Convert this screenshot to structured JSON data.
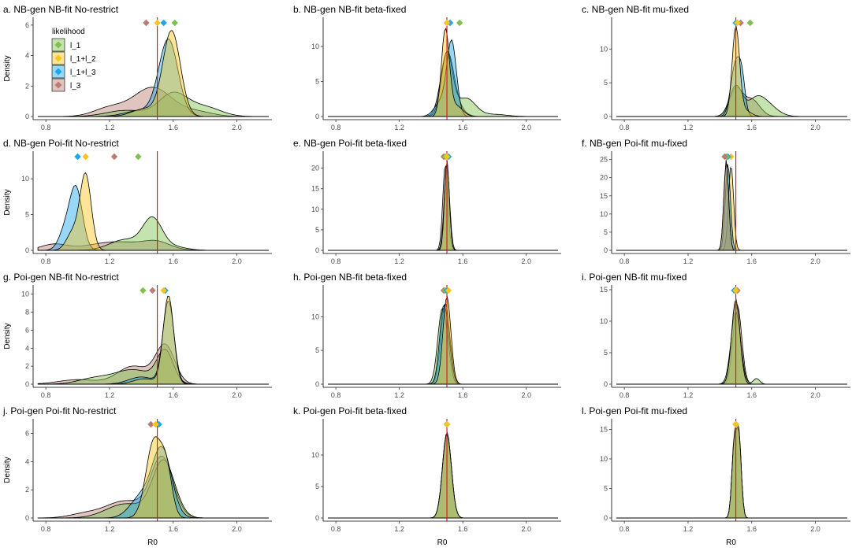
{
  "chart_data": {
    "type": "area",
    "layout": "4x3 grid of density panels",
    "x_label": "R0",
    "y_label": "Density",
    "xlim": [
      0.72,
      2.22
    ],
    "x_ticks": [
      0.8,
      1.2,
      1.6,
      2.0
    ],
    "x_tick_labels": [
      "0.8",
      "1.2",
      "1.6",
      "2.0"
    ],
    "true_value": 1.5,
    "legend": {
      "title": "likelihood",
      "position": "inside top-left of panel a",
      "entries": [
        {
          "key": "l1",
          "label": "l_1",
          "color": "#7cc24b"
        },
        {
          "key": "l12",
          "label": "l_1+l_2",
          "color": "#f8c51c"
        },
        {
          "key": "l13",
          "label": "l_1+l_3",
          "color": "#1aa7ec"
        },
        {
          "key": "l3",
          "label": "l_3",
          "color": "#b97d74"
        }
      ]
    },
    "colors": {
      "reference_line": "#e31a1c",
      "outline": "#000000"
    },
    "panels": [
      {
        "title": "a. NB-gen NB-fit No-restrict",
        "ylim": [
          0,
          6.2
        ],
        "y_ticks": [
          0,
          2,
          4,
          6
        ],
        "series": [
          {
            "key": "l3",
            "comps": [
              [
                1.47,
                0.12,
                1.9
              ],
              [
                1.2,
                0.1,
                0.55
              ],
              [
                1.75,
                0.1,
                0.3
              ]
            ],
            "diamond": 1.43
          },
          {
            "key": "l1",
            "comps": [
              [
                1.6,
                0.09,
                1.5
              ],
              [
                1.8,
                0.1,
                0.6
              ],
              [
                1.3,
                0.12,
                0.4
              ]
            ],
            "diamond": 1.61
          },
          {
            "key": "l13",
            "comps": [
              [
                1.57,
                0.06,
                5.0
              ],
              [
                1.4,
                0.1,
                0.4
              ]
            ],
            "diamond": 1.54
          },
          {
            "key": "l12",
            "comps": [
              [
                1.59,
                0.055,
                5.6
              ],
              [
                1.42,
                0.08,
                0.5
              ]
            ],
            "diamond": 1.5
          }
        ]
      },
      {
        "title": "b. NB-gen NB-fit beta-fixed",
        "ylim": [
          0,
          13.5
        ],
        "y_ticks": [
          0,
          5,
          10
        ],
        "series": [
          {
            "key": "l3",
            "comps": [
              [
                1.5,
                0.04,
                8.4
              ],
              [
                1.55,
                0.05,
                1.5
              ]
            ],
            "diamond": 1.5
          },
          {
            "key": "l1",
            "comps": [
              [
                1.5,
                0.035,
                9.0
              ],
              [
                1.62,
                0.06,
                2.6
              ],
              [
                1.8,
                0.08,
                0.3
              ]
            ],
            "diamond": 1.58
          },
          {
            "key": "l13",
            "comps": [
              [
                1.53,
                0.03,
                10.5
              ],
              [
                1.46,
                0.04,
                2.0
              ]
            ],
            "diamond": 1.52
          },
          {
            "key": "l12",
            "comps": [
              [
                1.49,
                0.025,
                12.3
              ],
              [
                1.56,
                0.04,
                1.5
              ]
            ],
            "diamond": 1.5
          }
        ]
      },
      {
        "title": "c. NB-gen NB-fit mu-fixed",
        "ylim": [
          0,
          14
        ],
        "y_ticks": [
          0,
          5,
          10
        ],
        "series": [
          {
            "key": "l3",
            "comps": [
              [
                1.5,
                0.04,
                4.0
              ],
              [
                1.6,
                0.05,
                2.5
              ]
            ],
            "diamond": 1.53
          },
          {
            "key": "l1",
            "comps": [
              [
                1.5,
                0.04,
                4.5
              ],
              [
                1.68,
                0.07,
                2.0
              ],
              [
                1.62,
                0.05,
                1.5
              ]
            ],
            "diamond": 1.59
          },
          {
            "key": "l13",
            "comps": [
              [
                1.5,
                0.03,
                8.0
              ],
              [
                1.54,
                0.02,
                4.0
              ]
            ],
            "diamond": 1.5
          },
          {
            "key": "l12",
            "comps": [
              [
                1.5,
                0.023,
                13.0
              ],
              [
                1.55,
                0.04,
                1.0
              ]
            ],
            "diamond": 1.51
          }
        ]
      },
      {
        "title": "d. NB-gen Poi-fit No-restrict",
        "ylim": [
          0,
          13.2
        ],
        "y_ticks": [
          0,
          5,
          10
        ],
        "series": [
          {
            "key": "l3",
            "comps": [
              [
                1.25,
                0.18,
                1.2
              ],
              [
                0.85,
                0.08,
                0.8
              ],
              [
                1.5,
                0.08,
                0.9
              ]
            ],
            "diamond": 1.23
          },
          {
            "key": "l1",
            "comps": [
              [
                1.47,
                0.06,
                4.2
              ],
              [
                1.3,
                0.1,
                1.5
              ],
              [
                1.6,
                0.08,
                0.5
              ]
            ],
            "diamond": 1.38
          },
          {
            "key": "l13",
            "comps": [
              [
                0.99,
                0.04,
                8.5
              ],
              [
                0.92,
                0.04,
                2.5
              ]
            ],
            "diamond": 1.0
          },
          {
            "key": "l12",
            "comps": [
              [
                1.05,
                0.035,
                10.5
              ],
              [
                0.97,
                0.04,
                2.5
              ]
            ],
            "diamond": 1.05
          }
        ]
      },
      {
        "title": "e. NB-gen Poi-fit beta-fixed",
        "ylim": [
          0,
          23
        ],
        "y_ticks": [
          0,
          5,
          10,
          15,
          20
        ],
        "series": [
          {
            "key": "l3",
            "comps": [
              [
                1.49,
                0.016,
                21.0
              ]
            ],
            "diamond": 1.48
          },
          {
            "key": "l1",
            "comps": [
              [
                1.5,
                0.017,
                20.5
              ]
            ],
            "diamond": 1.49
          },
          {
            "key": "l13",
            "comps": [
              [
                1.5,
                0.015,
                21.5
              ]
            ],
            "diamond": 1.51
          },
          {
            "key": "l12",
            "comps": [
              [
                1.5,
                0.015,
                22.0
              ]
            ],
            "diamond": 1.5
          }
        ]
      },
      {
        "title": "f. NB-gen Poi-fit mu-fixed",
        "ylim": [
          0,
          26
        ],
        "y_ticks": [
          0,
          5,
          10,
          15,
          20,
          25
        ],
        "series": [
          {
            "key": "l12",
            "comps": [
              [
                1.47,
                0.016,
                23.5
              ]
            ],
            "diamond": 1.47
          },
          {
            "key": "l13",
            "comps": [
              [
                1.45,
                0.016,
                24.0
              ]
            ],
            "diamond": 1.45
          },
          {
            "key": "l1",
            "comps": [
              [
                1.44,
                0.015,
                24.5
              ]
            ],
            "diamond": 1.44
          },
          {
            "key": "l3",
            "comps": [
              [
                1.44,
                0.015,
                25.0
              ]
            ],
            "diamond": 1.43
          }
        ]
      },
      {
        "title": "g. Poi-gen NB-fit No-restrict",
        "ylim": [
          0,
          10.5
        ],
        "y_ticks": [
          0,
          2,
          4,
          6,
          8,
          10
        ],
        "series": [
          {
            "key": "l3",
            "comps": [
              [
                1.55,
                0.06,
                4.2
              ],
              [
                1.35,
                0.1,
                2.0
              ],
              [
                1.0,
                0.12,
                0.5
              ]
            ],
            "diamond": 1.47
          },
          {
            "key": "l1",
            "comps": [
              [
                1.55,
                0.05,
                3.5
              ],
              [
                1.35,
                0.12,
                1.6
              ],
              [
                1.1,
                0.1,
                0.6
              ]
            ],
            "diamond": 1.41
          },
          {
            "key": "l13",
            "comps": [
              [
                1.57,
                0.035,
                9.2
              ],
              [
                1.4,
                0.08,
                0.8
              ]
            ],
            "diamond": 1.55
          },
          {
            "key": "l12",
            "comps": [
              [
                1.57,
                0.033,
                9.8
              ],
              [
                1.42,
                0.07,
                0.6
              ]
            ],
            "diamond": 1.54
          }
        ]
      },
      {
        "title": "h. Poi-gen NB-fit beta-fixed",
        "ylim": [
          0,
          14
        ],
        "y_ticks": [
          0,
          5,
          10
        ],
        "series": [
          {
            "key": "l3",
            "comps": [
              [
                1.49,
                0.028,
                12.0
              ]
            ],
            "diamond": 1.48
          },
          {
            "key": "l1",
            "comps": [
              [
                1.47,
                0.028,
                11.0
              ],
              [
                1.51,
                0.02,
                2.0
              ]
            ],
            "diamond": 1.49
          },
          {
            "key": "l13",
            "comps": [
              [
                1.48,
                0.026,
                11.5
              ],
              [
                1.52,
                0.02,
                2.0
              ]
            ],
            "diamond": 1.5
          },
          {
            "key": "l12",
            "comps": [
              [
                1.5,
                0.025,
                13.0
              ]
            ],
            "diamond": 1.51
          }
        ]
      },
      {
        "title": "i. Poi-gen NB-fit mu-fixed",
        "ylim": [
          0,
          15
        ],
        "y_ticks": [
          0,
          5,
          10,
          15
        ],
        "series": [
          {
            "key": "l3",
            "comps": [
              [
                1.51,
                0.027,
                12.5
              ]
            ],
            "diamond": 1.51
          },
          {
            "key": "l1",
            "comps": [
              [
                1.5,
                0.03,
                11.5
              ],
              [
                1.63,
                0.02,
                0.9
              ]
            ],
            "diamond": 1.5
          },
          {
            "key": "l13",
            "comps": [
              [
                1.5,
                0.026,
                13.0
              ]
            ],
            "diamond": 1.49
          },
          {
            "key": "l12",
            "comps": [
              [
                1.5,
                0.026,
                13.5
              ]
            ],
            "diamond": 1.5
          }
        ]
      },
      {
        "title": "j. Poi-gen Poi-fit No-restrict",
        "ylim": [
          0,
          6.7
        ],
        "y_ticks": [
          0,
          2,
          4,
          6
        ],
        "series": [
          {
            "key": "l3",
            "comps": [
              [
                1.53,
                0.07,
                4.2
              ],
              [
                1.3,
                0.12,
                1.2
              ],
              [
                1.05,
                0.1,
                0.3
              ]
            ],
            "diamond": 1.46
          },
          {
            "key": "l1",
            "comps": [
              [
                1.54,
                0.07,
                4.0
              ],
              [
                1.3,
                0.12,
                1.0
              ]
            ],
            "diamond": 1.49
          },
          {
            "key": "l13",
            "comps": [
              [
                1.53,
                0.06,
                4.8
              ],
              [
                1.4,
                0.07,
                1.5
              ]
            ],
            "diamond": 1.51
          },
          {
            "key": "l12",
            "comps": [
              [
                1.48,
                0.05,
                5.5
              ],
              [
                1.56,
                0.035,
                2.8
              ]
            ],
            "diamond": 1.49
          }
        ]
      },
      {
        "title": "k. Poi-gen Poi-fit beta-fixed",
        "ylim": [
          0,
          15
        ],
        "y_ticks": [
          0,
          5,
          10
        ],
        "series": [
          {
            "key": "l3",
            "comps": [
              [
                1.5,
                0.028,
                13.5
              ]
            ],
            "diamond": 1.5
          },
          {
            "key": "l1",
            "comps": [
              [
                1.5,
                0.028,
                13.3
              ]
            ],
            "diamond": 1.5
          },
          {
            "key": "l13",
            "comps": [
              [
                1.5,
                0.028,
                13.6
              ]
            ],
            "diamond": 1.5
          },
          {
            "key": "l12",
            "comps": [
              [
                1.5,
                0.028,
                13.4
              ]
            ],
            "diamond": 1.5
          }
        ]
      },
      {
        "title": "l. Poi-gen Poi-fit mu-fixed",
        "ylim": [
          0,
          16
        ],
        "y_ticks": [
          0,
          5,
          10,
          15
        ],
        "series": [
          {
            "key": "l3",
            "comps": [
              [
                1.49,
                0.015,
                12.0
              ],
              [
                1.52,
                0.015,
                13.0
              ]
            ],
            "diamond": 1.5
          },
          {
            "key": "l1",
            "comps": [
              [
                1.49,
                0.015,
                12.0
              ],
              [
                1.52,
                0.015,
                13.0
              ]
            ],
            "diamond": 1.5
          },
          {
            "key": "l13",
            "comps": [
              [
                1.49,
                0.015,
                12.0
              ],
              [
                1.52,
                0.015,
                13.0
              ]
            ],
            "diamond": 1.5
          },
          {
            "key": "l12",
            "comps": [
              [
                1.49,
                0.015,
                12.5
              ],
              [
                1.52,
                0.015,
                13.5
              ]
            ],
            "diamond": 1.5
          }
        ]
      }
    ]
  }
}
